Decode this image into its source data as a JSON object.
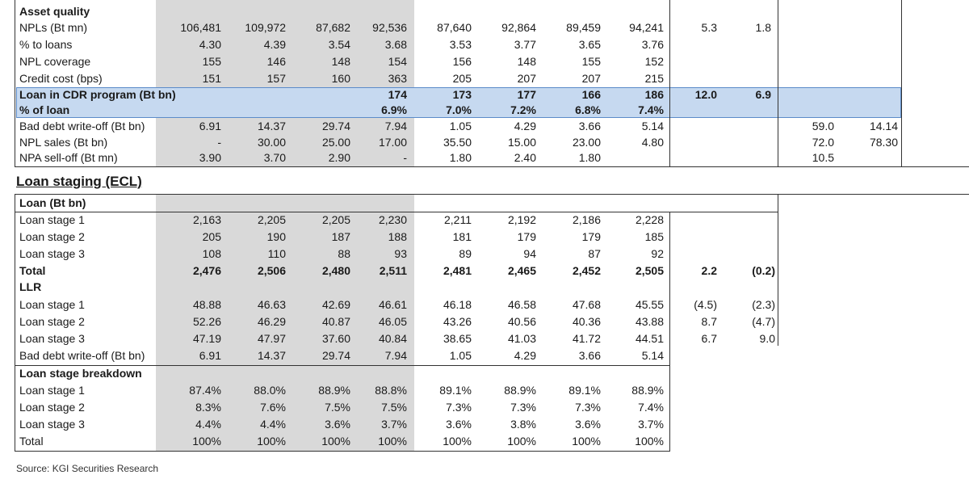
{
  "asset_quality": {
    "title": "Asset quality",
    "rows": [
      {
        "label": "NPLs (Bt mn)",
        "vals": [
          "106,481",
          "109,972",
          "87,682",
          "92,536",
          "87,640",
          "92,864",
          "89,459",
          "94,241"
        ],
        "ext": [
          "5.3",
          "1.8",
          "",
          ""
        ]
      },
      {
        "label": "% to loans",
        "vals": [
          "4.30",
          "4.39",
          "3.54",
          "3.68",
          "3.53",
          "3.77",
          "3.65",
          "3.76"
        ],
        "ext": [
          "",
          "",
          "",
          ""
        ]
      },
      {
        "label": "NPL coverage",
        "vals": [
          "155",
          "146",
          "148",
          "154",
          "156",
          "148",
          "155",
          "152"
        ],
        "ext": [
          "",
          "",
          "",
          ""
        ]
      },
      {
        "label": "Credit cost (bps)",
        "vals": [
          "151",
          "157",
          "160",
          "363",
          "205",
          "207",
          "207",
          "215"
        ],
        "ext": [
          "",
          "",
          "",
          ""
        ]
      }
    ],
    "cdr_rows": [
      {
        "label": "Loan in CDR program (Bt bn)",
        "vals": [
          "",
          "",
          "",
          "174",
          "173",
          "177",
          "166",
          "186"
        ],
        "ext": [
          "12.0",
          "6.9",
          "",
          ""
        ]
      },
      {
        "label": "% of loan",
        "vals": [
          "",
          "",
          "",
          "6.9%",
          "7.0%",
          "7.2%",
          "6.8%",
          "7.4%"
        ],
        "ext": [
          "",
          "",
          "",
          ""
        ]
      }
    ],
    "tail_rows": [
      {
        "label": "Bad debt write-off (Bt bn)",
        "vals": [
          "6.91",
          "14.37",
          "29.74",
          "7.94",
          "1.05",
          "4.29",
          "3.66",
          "5.14"
        ],
        "ext": [
          "",
          "",
          "59.0",
          "14.14"
        ]
      },
      {
        "label": "NPL sales (Bt bn)",
        "vals": [
          "-",
          "30.00",
          "25.00",
          "17.00",
          "35.50",
          "15.00",
          "23.00",
          "4.80"
        ],
        "ext": [
          "",
          "",
          "72.0",
          "78.30"
        ]
      },
      {
        "label": "NPA sell-off (Bt mn)",
        "vals": [
          "3.90",
          "3.70",
          "2.90",
          "-",
          "1.80",
          "2.40",
          "1.80",
          ""
        ],
        "ext": [
          "",
          "",
          "10.5",
          ""
        ]
      }
    ]
  },
  "loan_staging": {
    "title": "Loan staging (ECL)",
    "loan_header": "Loan (Bt bn)",
    "loan_rows": [
      {
        "label": "Loan stage 1",
        "vals": [
          "2,163",
          "2,205",
          "2,205",
          "2,230",
          "2,211",
          "2,192",
          "2,186",
          "2,228"
        ],
        "ext": [
          "",
          ""
        ]
      },
      {
        "label": "Loan stage 2",
        "vals": [
          "205",
          "190",
          "187",
          "188",
          "181",
          "179",
          "179",
          "185"
        ],
        "ext": [
          "",
          ""
        ]
      },
      {
        "label": "Loan stage 3",
        "vals": [
          "108",
          "110",
          "88",
          "93",
          "89",
          "94",
          "87",
          "92"
        ],
        "ext": [
          "",
          ""
        ]
      },
      {
        "label": "Total",
        "vals": [
          "2,476",
          "2,506",
          "2,480",
          "2,511",
          "2,481",
          "2,465",
          "2,452",
          "2,505"
        ],
        "ext": [
          "2.2",
          "(0.2)"
        ]
      }
    ],
    "llr_header": "LLR",
    "llr_rows": [
      {
        "label": "Loan stage 1",
        "vals": [
          "48.88",
          "46.63",
          "42.69",
          "46.61",
          "46.18",
          "46.58",
          "47.68",
          "45.55"
        ],
        "ext": [
          "(4.5)",
          "(2.3)"
        ]
      },
      {
        "label": "Loan stage 2",
        "vals": [
          "52.26",
          "46.29",
          "40.87",
          "46.05",
          "43.26",
          "40.56",
          "40.36",
          "43.88"
        ],
        "ext": [
          "8.7",
          "(4.7)"
        ]
      },
      {
        "label": "Loan stage 3",
        "vals": [
          "47.19",
          "47.97",
          "37.60",
          "40.84",
          "38.65",
          "41.03",
          "41.72",
          "44.51"
        ],
        "ext": [
          "6.7",
          "9.0"
        ]
      },
      {
        "label": "Bad debt write-off (Bt bn)",
        "vals": [
          "6.91",
          "14.37",
          "29.74",
          "7.94",
          "1.05",
          "4.29",
          "3.66",
          "5.14"
        ],
        "ext": [
          "",
          ""
        ]
      }
    ],
    "breakdown_header": "Loan stage breakdown",
    "breakdown_rows": [
      {
        "label": "Loan stage 1",
        "vals": [
          "87.4%",
          "88.0%",
          "88.9%",
          "88.8%",
          "89.1%",
          "88.9%",
          "89.1%",
          "88.9%"
        ]
      },
      {
        "label": "Loan stage 2",
        "vals": [
          "8.3%",
          "7.6%",
          "7.5%",
          "7.5%",
          "7.3%",
          "7.3%",
          "7.3%",
          "7.4%"
        ]
      },
      {
        "label": "Loan stage 3",
        "vals": [
          "4.4%",
          "4.4%",
          "3.6%",
          "3.7%",
          "3.6%",
          "3.8%",
          "3.6%",
          "3.7%"
        ]
      },
      {
        "label": "Total",
        "vals": [
          "100%",
          "100%",
          "100%",
          "100%",
          "100%",
          "100%",
          "100%",
          "100%"
        ]
      }
    ]
  },
  "source": "Source: KGI Securities Research"
}
